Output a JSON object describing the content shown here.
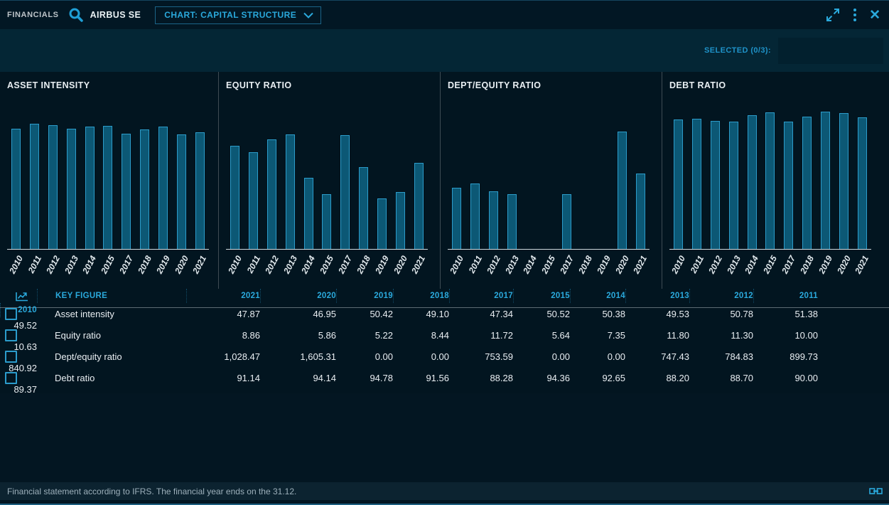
{
  "header": {
    "app_label": "FINANCIALS",
    "company": "AIRBUS SE",
    "chart_selector_label": "CHART: CAPITAL STRUCTURE",
    "accent_color": "#2aa9dc"
  },
  "toolbar": {
    "selected_label": "SELECTED (0/3):"
  },
  "chart_data": [
    {
      "type": "bar",
      "title": "ASSET INTENSITY",
      "categories": [
        "2010",
        "2011",
        "2012",
        "2013",
        "2014",
        "2015",
        "2017",
        "2018",
        "2019",
        "2020",
        "2021"
      ],
      "values": [
        49.52,
        51.38,
        50.78,
        49.53,
        50.38,
        50.52,
        47.34,
        49.1,
        50.42,
        46.95,
        47.87
      ],
      "xlabel": "",
      "ylabel": "",
      "ylim": [
        0,
        57
      ],
      "bar_fill": "#0c5875",
      "bar_stroke": "#2c9cca",
      "grid": false,
      "legend": "none"
    },
    {
      "type": "bar",
      "title": "EQUITY RATIO",
      "categories": [
        "2010",
        "2011",
        "2012",
        "2013",
        "2014",
        "2015",
        "2017",
        "2018",
        "2019",
        "2020",
        "2021"
      ],
      "values": [
        10.63,
        10.0,
        11.3,
        11.8,
        7.35,
        5.64,
        11.72,
        8.44,
        5.22,
        5.86,
        8.86
      ],
      "xlabel": "",
      "ylabel": "",
      "ylim": [
        0,
        14.3
      ],
      "bar_fill": "#0c5875",
      "bar_stroke": "#2c9cca",
      "grid": false,
      "legend": "none"
    },
    {
      "type": "bar",
      "title": "DEPT/EQUITY RATIO",
      "categories": [
        "2010",
        "2011",
        "2012",
        "2013",
        "2014",
        "2015",
        "2017",
        "2018",
        "2019",
        "2020",
        "2021"
      ],
      "values": [
        840.92,
        899.73,
        784.83,
        747.43,
        0.0,
        0.0,
        753.59,
        0.0,
        0.0,
        1605.31,
        1028.47
      ],
      "xlabel": "",
      "ylabel": "",
      "ylim": [
        0,
        1900
      ],
      "bar_fill": "#0c5875",
      "bar_stroke": "#2c9cca",
      "grid": false,
      "legend": "none"
    },
    {
      "type": "bar",
      "title": "DEBT RATIO",
      "categories": [
        "2010",
        "2011",
        "2012",
        "2013",
        "2014",
        "2015",
        "2017",
        "2018",
        "2019",
        "2020",
        "2021"
      ],
      "values": [
        89.37,
        90.0,
        88.7,
        88.2,
        92.65,
        94.36,
        88.28,
        91.56,
        94.78,
        94.14,
        91.14
      ],
      "xlabel": "",
      "ylabel": "",
      "ylim": [
        0,
        96
      ],
      "bar_fill": "#0c5875",
      "bar_stroke": "#2c9cca",
      "grid": false,
      "legend": "none"
    }
  ],
  "table": {
    "key_figure_header": "KEY FIGURE",
    "year_headers": [
      "2021",
      "2020",
      "2019",
      "2018",
      "2017",
      "2015",
      "2014",
      "2013",
      "2012",
      "2011",
      "2010"
    ],
    "rows": [
      {
        "label": "Asset intensity",
        "checked": false,
        "values": [
          "47.87",
          "46.95",
          "50.42",
          "49.10",
          "47.34",
          "50.52",
          "50.38",
          "49.53",
          "50.78",
          "51.38",
          "49.52"
        ]
      },
      {
        "label": "Equity ratio",
        "checked": false,
        "values": [
          "8.86",
          "5.86",
          "5.22",
          "8.44",
          "11.72",
          "5.64",
          "7.35",
          "11.80",
          "11.30",
          "10.00",
          "10.63"
        ]
      },
      {
        "label": "Dept/equity ratio",
        "checked": false,
        "values": [
          "1,028.47",
          "1,605.31",
          "0.00",
          "0.00",
          "753.59",
          "0.00",
          "0.00",
          "747.43",
          "784.83",
          "899.73",
          "840.92"
        ]
      },
      {
        "label": "Debt ratio",
        "checked": false,
        "values": [
          "91.14",
          "94.14",
          "94.78",
          "91.56",
          "88.28",
          "94.36",
          "92.65",
          "88.20",
          "88.70",
          "90.00",
          "89.37"
        ]
      }
    ]
  },
  "footer": {
    "note": "Financial statement according to IFRS. The financial year ends on the 31.12."
  }
}
